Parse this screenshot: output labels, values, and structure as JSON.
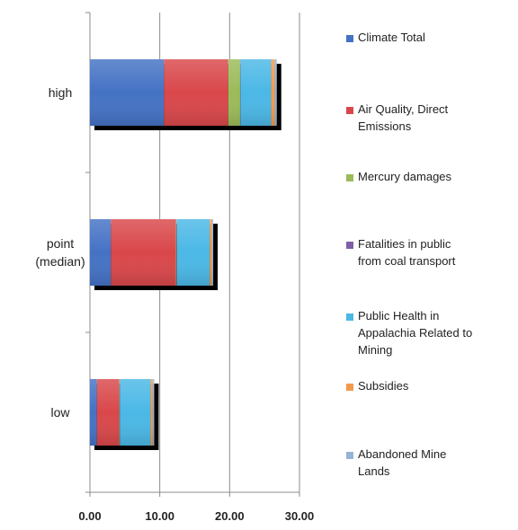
{
  "chart_data": {
    "type": "bar",
    "orientation": "horizontal",
    "stacked": true,
    "categories": [
      [
        "high"
      ],
      [
        "point",
        "(median)"
      ],
      [
        "low"
      ]
    ],
    "xlim": [
      0,
      30
    ],
    "xticks": [
      "0.00",
      "10.00",
      "20.00",
      "30.00"
    ],
    "grid": true,
    "legend_position": "right",
    "series": [
      {
        "name": [
          "Climate Total"
        ],
        "color": "#4472c4",
        "values": [
          10.6,
          3.0,
          1.0
        ]
      },
      {
        "name": [
          "Air Quality, Direct",
          "Emissions"
        ],
        "color": "#d9474a",
        "values": [
          9.2,
          9.3,
          3.2
        ]
      },
      {
        "name": [
          "Mercury damages"
        ],
        "color": "#9bbb59",
        "values": [
          1.7,
          0.1,
          0.05
        ]
      },
      {
        "name": [
          "Fatalities in public",
          "from coal transport"
        ],
        "color": "#7f5fa8",
        "values": [
          0.05,
          0.05,
          0.05
        ]
      },
      {
        "name": [
          "Public Health in",
          "Appalachia Related to",
          "Mining"
        ],
        "color": "#4bb8e6",
        "values": [
          4.4,
          4.7,
          4.4
        ]
      },
      {
        "name": [
          "Subsidies"
        ],
        "color": "#f39a4a",
        "values": [
          0.5,
          0.3,
          0.3
        ]
      },
      {
        "name": [
          "Abandoned Mine",
          "Lands"
        ],
        "color": "#95b3d7",
        "values": [
          0.3,
          0.2,
          0.2
        ]
      }
    ]
  }
}
